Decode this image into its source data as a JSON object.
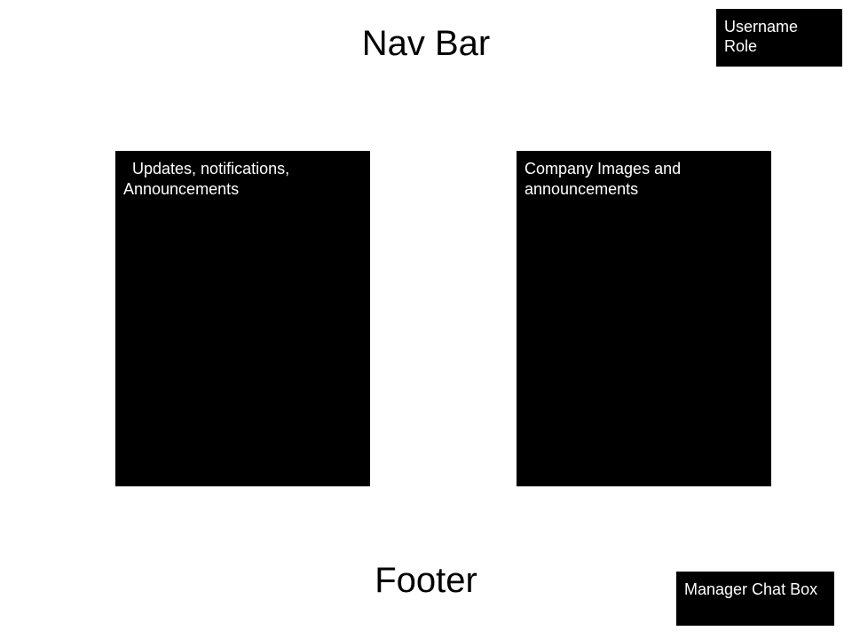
{
  "nav": {
    "title": "Nav Bar"
  },
  "user_box": {
    "username": "Username",
    "role": "Role"
  },
  "panels": {
    "left": {
      "line1": "Updates, notifications,",
      "line2": "Announcements"
    },
    "right": {
      "line1": "Company Images and",
      "line2": "announcements"
    }
  },
  "footer": {
    "title": "Footer"
  },
  "chat_box": {
    "label": "Manager Chat Box"
  },
  "colors": {
    "box_fill": "#000000",
    "box_text": "#ffffff",
    "background": "#ffffff"
  }
}
